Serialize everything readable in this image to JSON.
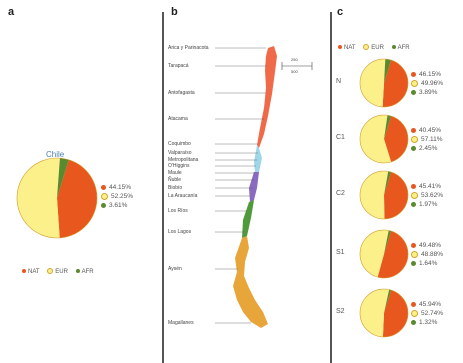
{
  "panels": {
    "a": "a",
    "b": "b",
    "c": "c"
  },
  "colors": {
    "NAT": "#e8571d",
    "EUR": "#fbf08a",
    "AFR": "#5a8a2e",
    "pie_outline": "#d49a2a"
  },
  "chart_data": [
    {
      "panel": "a",
      "type": "pie",
      "title": "Chile",
      "categories": [
        "NAT",
        "EUR",
        "AFR"
      ],
      "values": [
        44.15,
        52.25,
        3.61
      ],
      "value_labels": [
        "44.15%",
        "52.25%",
        "3.61%"
      ],
      "legend": [
        {
          "code": "NAT",
          "label": "NAT"
        },
        {
          "code": "EUR",
          "label": "EUR"
        },
        {
          "code": "AFR",
          "label": "AFR"
        }
      ]
    },
    {
      "panel": "b",
      "type": "map",
      "title": "",
      "regions": [
        {
          "label": "Arica y Parinacota",
          "cluster": "N",
          "color": "#f06a4a"
        },
        {
          "label": "Tarapacá",
          "cluster": "N",
          "color": "#f06a4a"
        },
        {
          "label": "Antofagasta",
          "cluster": "N",
          "color": "#f06a4a"
        },
        {
          "label": "Atacama",
          "cluster": "N",
          "color": "#f06a4a"
        },
        {
          "label": "Coquimbo",
          "cluster": "C1",
          "color": "#9fd6e8"
        },
        {
          "label": "Valparaíso",
          "cluster": "C1",
          "color": "#9fd6e8"
        },
        {
          "label": "Metropolitana",
          "cluster": "C1",
          "color": "#9fd6e8"
        },
        {
          "label": "O'Higgins",
          "cluster": "C2",
          "color": "#8a6bbf"
        },
        {
          "label": "Maule",
          "cluster": "C2",
          "color": "#8a6bbf"
        },
        {
          "label": "Ñuble",
          "cluster": "C2",
          "color": "#8a6bbf"
        },
        {
          "label": "Biobío",
          "cluster": "C2",
          "color": "#8a6bbf"
        },
        {
          "label": "La Araucanía",
          "cluster": "S1",
          "color": "#4f9a3a"
        },
        {
          "label": "Los Ríos",
          "cluster": "S1",
          "color": "#4f9a3a"
        },
        {
          "label": "Los Lagos",
          "cluster": "S1",
          "color": "#4f9a3a"
        },
        {
          "label": "Aysén",
          "cluster": "S2",
          "color": "#e8a53a"
        },
        {
          "label": "Magallanes",
          "cluster": "S2",
          "color": "#e8a53a"
        }
      ],
      "scale": {
        "top": "250",
        "bottom": "500"
      }
    },
    {
      "panel": "c",
      "type": "pie",
      "title": "",
      "series_names": [
        "NAT",
        "EUR",
        "AFR"
      ],
      "legend": [
        {
          "code": "NAT",
          "label": "NAT"
        },
        {
          "code": "EUR",
          "label": "EUR"
        },
        {
          "code": "AFR",
          "label": "AFR"
        }
      ],
      "clusters": [
        {
          "code": "N",
          "values": [
            46.15,
            49.96,
            3.89
          ],
          "labels": [
            "46.15%",
            "49.96%",
            "3.89%"
          ]
        },
        {
          "code": "C1",
          "values": [
            40.45,
            57.11,
            2.45
          ],
          "labels": [
            "40.45%",
            "57.11%",
            "2.45%"
          ]
        },
        {
          "code": "C2",
          "values": [
            45.41,
            53.62,
            1.97
          ],
          "labels": [
            "45.41%",
            "53.62%",
            "1.97%"
          ]
        },
        {
          "code": "S1",
          "values": [
            49.48,
            48.88,
            1.64
          ],
          "labels": [
            "49.48%",
            "48.88%",
            "1.64%"
          ]
        },
        {
          "code": "S2",
          "values": [
            45.94,
            52.74,
            1.32
          ],
          "labels": [
            "45.94%",
            "52.74%",
            "1.32%"
          ]
        }
      ]
    }
  ]
}
